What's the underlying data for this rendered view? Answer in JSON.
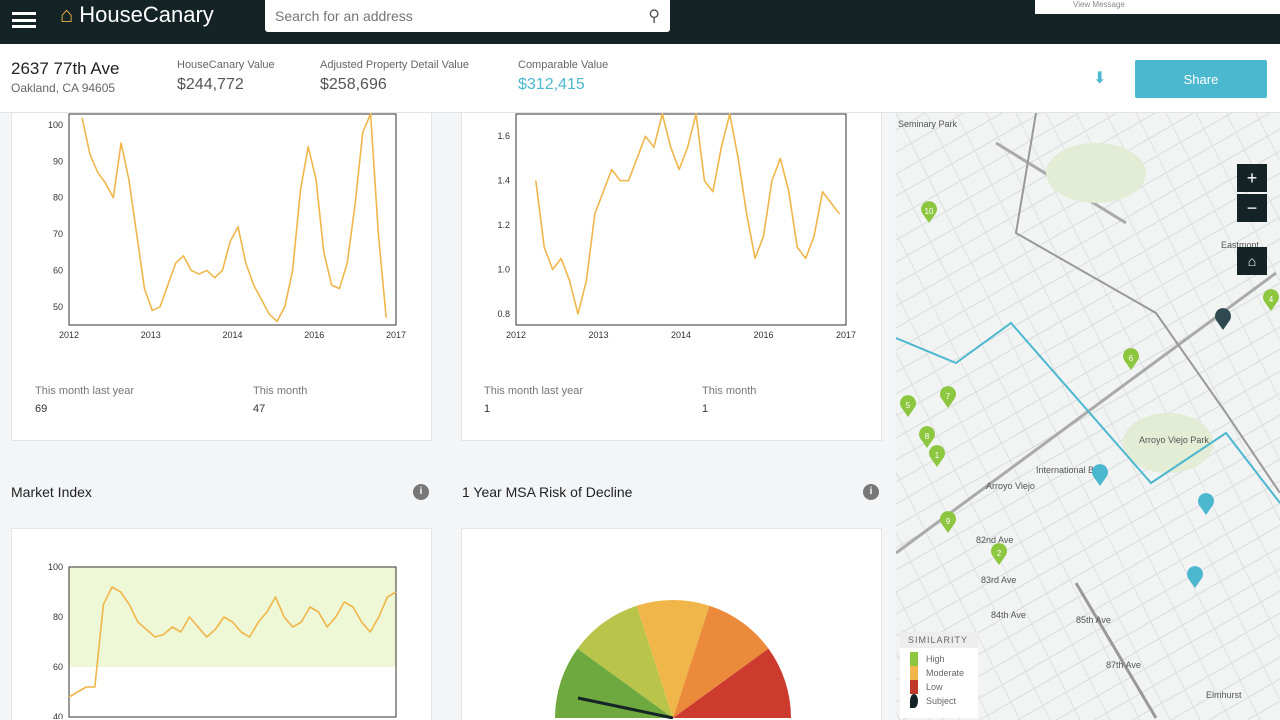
{
  "app": {
    "name": "HouseCanary",
    "search_placeholder": "Search for an address",
    "toast": "View Message"
  },
  "property": {
    "street": "2637 77th Ave",
    "city": "Oakland, CA 94605"
  },
  "values": [
    {
      "label": "HouseCanary Value",
      "value": "$244,772"
    },
    {
      "label": "Adjusted Property Detail Value",
      "value": "$258,696"
    },
    {
      "label": "Comparable Value",
      "value": "$312,415",
      "color": "#4bb8d0"
    }
  ],
  "share_label": "Share",
  "cards": [
    {
      "stats": [
        {
          "label": "This month last year",
          "value": "69"
        },
        {
          "label": "This month",
          "value": "47"
        }
      ]
    },
    {
      "stats": [
        {
          "label": "This month last year",
          "value": "1"
        },
        {
          "label": "This month",
          "value": "1"
        }
      ]
    }
  ],
  "sections": {
    "market_index": "Market Index",
    "risk": "1 Year MSA Risk of Decline"
  },
  "chart_data": [
    {
      "type": "line",
      "color": "#f0b64a",
      "x_ticks": [
        "2012",
        "2013",
        "2014",
        "2016",
        "2017"
      ],
      "xlim": [
        2012,
        2017
      ],
      "ylim": [
        45,
        103
      ],
      "y_ticks": [
        50,
        60,
        70,
        80,
        90,
        100
      ],
      "x_start": 2012.2,
      "x_end": 2016.85,
      "values": [
        102,
        92,
        87,
        84,
        80,
        95,
        85,
        70,
        55,
        49,
        50,
        56,
        62,
        64,
        60,
        59,
        60,
        58,
        60,
        68,
        72,
        62,
        56,
        52,
        48,
        46,
        50,
        60,
        82,
        94,
        85,
        65,
        56,
        55,
        62,
        78,
        98,
        103,
        70,
        47
      ]
    },
    {
      "type": "line",
      "color": "#f0b64a",
      "x_ticks": [
        "2012",
        "2013",
        "2014",
        "2016",
        "2017"
      ],
      "xlim": [
        2012,
        2017
      ],
      "ylim": [
        0.75,
        1.7
      ],
      "y_ticks": [
        0.8,
        1.0,
        1.2,
        1.4,
        1.6
      ],
      "x_start": 2012.3,
      "x_end": 2016.9,
      "values": [
        1.4,
        1.1,
        1.0,
        1.05,
        0.95,
        0.8,
        0.95,
        1.25,
        1.35,
        1.45,
        1.4,
        1.4,
        1.5,
        1.6,
        1.55,
        1.7,
        1.55,
        1.45,
        1.55,
        1.7,
        1.4,
        1.35,
        1.55,
        1.7,
        1.5,
        1.25,
        1.05,
        1.15,
        1.4,
        1.5,
        1.35,
        1.1,
        1.05,
        1.15,
        1.35,
        1.3,
        1.25
      ]
    },
    {
      "type": "line",
      "color": "#f0b64a",
      "xlim": [
        2012,
        2017
      ],
      "ylim": [
        40,
        100
      ],
      "y_ticks": [
        40,
        60,
        80,
        100
      ],
      "x_start": 2012,
      "x_end": 2017,
      "bands": [
        {
          "from": 60,
          "to": 100,
          "color": "#eef7d6"
        }
      ],
      "values": [
        48,
        50,
        52,
        52,
        85,
        92,
        90,
        85,
        78,
        75,
        72,
        73,
        76,
        74,
        80,
        76,
        72,
        75,
        80,
        78,
        74,
        72,
        78,
        82,
        88,
        80,
        76,
        78,
        84,
        82,
        76,
        80,
        86,
        84,
        78,
        74,
        80,
        88,
        90
      ]
    },
    {
      "type": "pie",
      "colors": [
        "#6ea93f",
        "#b9c44a",
        "#f0b64a",
        "#ea8a3a",
        "#cc3b2e"
      ],
      "values": [
        1,
        1,
        1,
        1,
        1
      ]
    }
  ],
  "map": {
    "labels": [
      "Seminary Park",
      "Eastmont",
      "Arroyo Viejo Park",
      "Elmhurst",
      "82nd Ave",
      "83rd Ave",
      "84th Ave",
      "85th Ave",
      "87th Ave",
      "International Blvd",
      "Arroyo Viejo"
    ],
    "pins": [
      {
        "n": "10",
        "c": "#8dc63f"
      },
      {
        "n": "4",
        "c": "#8dc63f"
      },
      {
        "n": "6",
        "c": "#8dc63f"
      },
      {
        "n": "5",
        "c": "#8dc63f"
      },
      {
        "n": "7",
        "c": "#8dc63f"
      },
      {
        "n": "8",
        "c": "#8dc63f"
      },
      {
        "n": "1",
        "c": "#8dc63f"
      },
      {
        "n": "9",
        "c": "#8dc63f"
      },
      {
        "n": "2",
        "c": "#8dc63f"
      },
      {
        "n": "",
        "c": "#4bb8d0"
      },
      {
        "n": "",
        "c": "#4bb8d0"
      },
      {
        "n": "",
        "c": "#4bb8d0"
      },
      {
        "n": "",
        "c": "#2e4a50"
      }
    ],
    "legend": {
      "title": "SIMILARITY",
      "items": [
        {
          "label": "High",
          "color": "#8dc63f"
        },
        {
          "label": "Moderate",
          "color": "#f0b64a"
        },
        {
          "label": "Low",
          "color": "#c0392b"
        },
        {
          "label": "Subject",
          "color": "#142326"
        }
      ]
    }
  }
}
